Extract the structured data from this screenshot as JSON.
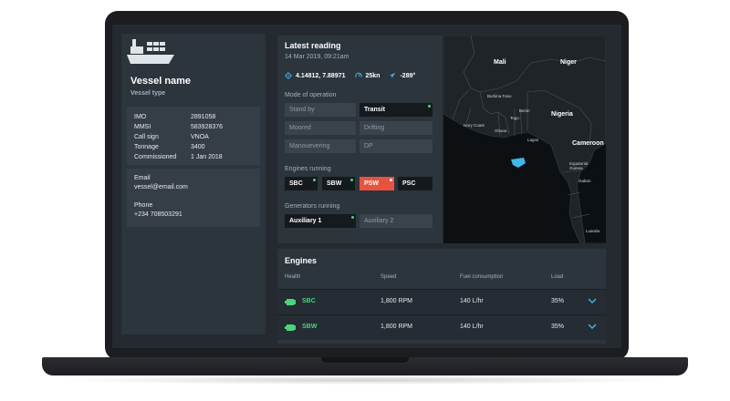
{
  "vessel": {
    "name": "Vessel name",
    "type": "Vessel type",
    "details": [
      {
        "label": "IMO",
        "value": "2891058"
      },
      {
        "label": "MMSI",
        "value": "583928376"
      },
      {
        "label": "Call sign",
        "value": "VNOA"
      },
      {
        "label": "Tonnage",
        "value": "3400"
      },
      {
        "label": "Commissioned",
        "value": "1 Jan 2018"
      }
    ],
    "email_label": "Email",
    "email": "vessel@email.com",
    "phone_label": "Phone",
    "phone": "+234 708503291"
  },
  "reading": {
    "title": "Latest reading",
    "date": "14 Mar 2019, 09:21am",
    "coords": "4.14812, 7.88971",
    "speed": "25kn",
    "heading": "-289°",
    "mode_label": "Mode of operation",
    "modes": [
      {
        "label": "Stand by",
        "active": false
      },
      {
        "label": "Transit",
        "active": true
      },
      {
        "label": "Moored",
        "active": false
      },
      {
        "label": "Drifting",
        "active": false
      },
      {
        "label": "Manouevering",
        "active": false
      },
      {
        "label": "DP",
        "active": false
      }
    ],
    "engines_label": "Engines running",
    "engines": [
      {
        "label": "SBC",
        "state": "on"
      },
      {
        "label": "SBW",
        "state": "on"
      },
      {
        "label": "PSW",
        "state": "alert"
      },
      {
        "label": "PSC",
        "state": "on"
      }
    ],
    "generators_label": "Generators running",
    "generators": [
      {
        "label": "Auxiliary 1",
        "active": true
      },
      {
        "label": "Auxiliary 2",
        "active": false
      }
    ]
  },
  "map": {
    "labels": {
      "mali": "Mali",
      "niger": "Niger",
      "nigeria": "Nigeria",
      "cameroon": "Cameroon",
      "burkina": "Burkina Faso",
      "ivory": "Ivory Coast",
      "ghana": "Ghana",
      "togo": "Togo",
      "benin": "Benin",
      "lagos": "Lagos",
      "eqguinea": "Equatorial Guinea",
      "gabon": "Gabon",
      "luanda": "Luanda"
    },
    "vessel_color": "#3fb8e8"
  },
  "engines_table": {
    "title": "Engines",
    "headers": {
      "health": "Health",
      "speed": "Speed",
      "fuel": "Fuel consumption",
      "load": "Load"
    },
    "rows": [
      {
        "name": "SBC",
        "speed": "1,800 RPM",
        "fuel": "140 L/hr",
        "load": "35%"
      },
      {
        "name": "SBW",
        "speed": "1,800 RPM",
        "fuel": "140 L/hr",
        "load": "35%"
      }
    ]
  },
  "colors": {
    "accent_green": "#4cd47a",
    "alert_red": "#e8533f",
    "panel": "#2c343c",
    "background": "#242a30"
  }
}
